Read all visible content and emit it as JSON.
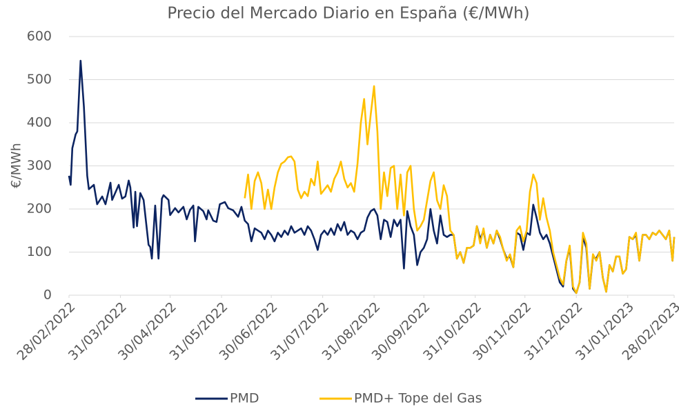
{
  "chart_data": {
    "type": "line",
    "title": "Precio del Mercado Diario en España (€/MWh)",
    "ylabel": "€/MWh",
    "legend": "bottom",
    "grid": true,
    "ylim": [
      0,
      600
    ],
    "yticks": [
      0,
      100,
      200,
      300,
      400,
      500,
      600
    ],
    "xlim": [
      "2022-02-28",
      "2023-02-28"
    ],
    "xticks": [
      {
        "value": "2022-02-28",
        "label": "28/02/2022"
      },
      {
        "value": "2022-03-31",
        "label": "31/03/2022"
      },
      {
        "value": "2022-04-30",
        "label": "30/04/2022"
      },
      {
        "value": "2022-05-31",
        "label": "31/05/2022"
      },
      {
        "value": "2022-06-30",
        "label": "30/06/2022"
      },
      {
        "value": "2022-07-31",
        "label": "31/07/2022"
      },
      {
        "value": "2022-08-31",
        "label": "31/08/2022"
      },
      {
        "value": "2022-09-30",
        "label": "30/09/2022"
      },
      {
        "value": "2022-10-31",
        "label": "31/10/2022"
      },
      {
        "value": "2022-11-30",
        "label": "30/11/2022"
      },
      {
        "value": "2022-12-31",
        "label": "31/12/2022"
      },
      {
        "value": "2023-01-31",
        "label": "31/01/2023"
      },
      {
        "value": "2023-02-28",
        "label": "28/02/2023"
      }
    ],
    "x": [
      "2022-02-28",
      "2022-03-01",
      "2022-03-02",
      "2022-03-04",
      "2022-03-05",
      "2022-03-07",
      "2022-03-09",
      "2022-03-11",
      "2022-03-12",
      "2022-03-15",
      "2022-03-17",
      "2022-03-20",
      "2022-03-22",
      "2022-03-25",
      "2022-03-26",
      "2022-03-30",
      "2022-04-01",
      "2022-04-03",
      "2022-04-05",
      "2022-04-06",
      "2022-04-08",
      "2022-04-09",
      "2022-04-10",
      "2022-04-12",
      "2022-04-14",
      "2022-04-17",
      "2022-04-18",
      "2022-04-19",
      "2022-04-21",
      "2022-04-23",
      "2022-04-25",
      "2022-04-26",
      "2022-04-29",
      "2022-04-30",
      "2022-05-03",
      "2022-05-05",
      "2022-05-08",
      "2022-05-10",
      "2022-05-12",
      "2022-05-14",
      "2022-05-15",
      "2022-05-17",
      "2022-05-20",
      "2022-05-22",
      "2022-05-23",
      "2022-05-26",
      "2022-05-28",
      "2022-05-30",
      "2022-06-02",
      "2022-06-04",
      "2022-06-07",
      "2022-06-10",
      "2022-06-12",
      "2022-06-14",
      "2022-06-16",
      "2022-06-18",
      "2022-06-20",
      "2022-06-22",
      "2022-06-24",
      "2022-06-26",
      "2022-06-28",
      "2022-06-30",
      "2022-07-02",
      "2022-07-04",
      "2022-07-06",
      "2022-07-08",
      "2022-07-10",
      "2022-07-12",
      "2022-07-14",
      "2022-07-16",
      "2022-07-18",
      "2022-07-20",
      "2022-07-22",
      "2022-07-24",
      "2022-07-26",
      "2022-07-28",
      "2022-07-30",
      "2022-08-01",
      "2022-08-03",
      "2022-08-05",
      "2022-08-07",
      "2022-08-09",
      "2022-08-11",
      "2022-08-13",
      "2022-08-15",
      "2022-08-17",
      "2022-08-19",
      "2022-08-21",
      "2022-08-23",
      "2022-08-25",
      "2022-08-27",
      "2022-08-29",
      "2022-08-31",
      "2022-09-02",
      "2022-09-04",
      "2022-09-06",
      "2022-09-08",
      "2022-09-10",
      "2022-09-12",
      "2022-09-14",
      "2022-09-16",
      "2022-09-18",
      "2022-09-20",
      "2022-09-22",
      "2022-09-24",
      "2022-09-26",
      "2022-09-28",
      "2022-09-30",
      "2022-10-02",
      "2022-10-04",
      "2022-10-06",
      "2022-10-08",
      "2022-10-10",
      "2022-10-12",
      "2022-10-14",
      "2022-10-16",
      "2022-10-18",
      "2022-10-20",
      "2022-10-22",
      "2022-10-24",
      "2022-10-26",
      "2022-10-28",
      "2022-10-30",
      "2022-11-01",
      "2022-11-03",
      "2022-11-05",
      "2022-11-07",
      "2022-11-09",
      "2022-11-11",
      "2022-11-13",
      "2022-11-15",
      "2022-11-17",
      "2022-11-19",
      "2022-11-21",
      "2022-11-23",
      "2022-11-25",
      "2022-11-27",
      "2022-11-29",
      "2022-12-01",
      "2022-12-03",
      "2022-12-05",
      "2022-12-07",
      "2022-12-09",
      "2022-12-11",
      "2022-12-13",
      "2022-12-15",
      "2022-12-17",
      "2022-12-19",
      "2022-12-21",
      "2022-12-23",
      "2022-12-25",
      "2022-12-27",
      "2022-12-29",
      "2022-12-31",
      "2023-01-02",
      "2023-01-04",
      "2023-01-06",
      "2023-01-08",
      "2023-01-10",
      "2023-01-12",
      "2023-01-14",
      "2023-01-16",
      "2023-01-18",
      "2023-01-20",
      "2023-01-22",
      "2023-01-24",
      "2023-01-26",
      "2023-01-28",
      "2023-01-30",
      "2023-02-01",
      "2023-02-03",
      "2023-02-05",
      "2023-02-07",
      "2023-02-09",
      "2023-02-11",
      "2023-02-13",
      "2023-02-15",
      "2023-02-17",
      "2023-02-19",
      "2023-02-21",
      "2023-02-23",
      "2023-02-25",
      "2023-02-27",
      "2023-02-28"
    ],
    "series": [
      {
        "name": "PMD",
        "color": "#0c2461",
        "values": [
          277,
          256,
          341,
          373,
          380,
          544,
          437,
          277,
          246,
          256,
          211,
          229,
          211,
          261,
          221,
          256,
          224,
          229,
          266,
          250,
          157,
          240,
          160,
          237,
          221,
          117,
          112,
          85,
          208,
          85,
          224,
          232,
          221,
          186,
          202,
          192,
          205,
          176,
          198,
          208,
          125,
          205,
          195,
          176,
          197,
          173,
          170,
          211,
          216,
          202,
          197,
          182,
          205,
          173,
          165,
          125,
          155,
          150,
          145,
          130,
          150,
          140,
          125,
          145,
          135,
          150,
          140,
          160,
          145,
          150,
          155,
          140,
          160,
          150,
          130,
          105,
          140,
          150,
          140,
          155,
          140,
          165,
          150,
          170,
          140,
          150,
          145,
          130,
          145,
          150,
          180,
          195,
          200,
          185,
          130,
          175,
          170,
          135,
          175,
          160,
          175,
          62,
          195,
          160,
          140,
          70,
          100,
          110,
          130,
          200,
          150,
          120,
          185,
          140,
          135,
          140,
          140,
          85,
          100,
          75,
          110,
          110,
          115,
          160,
          130,
          150,
          110,
          140,
          120,
          150,
          130,
          105,
          85,
          90,
          65,
          145,
          140,
          105,
          145,
          140,
          210,
          180,
          145,
          130,
          140,
          120,
          90,
          60,
          30,
          20,
          80,
          110,
          15,
          5,
          30,
          135,
          110,
          15,
          90,
          85,
          100,
          40,
          8,
          70,
          55,
          90,
          90,
          50,
          60,
          135,
          130,
          140,
          80,
          140,
          140,
          130,
          145,
          140,
          150,
          140,
          130,
          150,
          80,
          135
        ]
      },
      {
        "name": "PMD+ Tope del Gas",
        "color": "#ffc000",
        "values": [
          null,
          null,
          null,
          null,
          null,
          null,
          null,
          null,
          null,
          null,
          null,
          null,
          null,
          null,
          null,
          null,
          null,
          null,
          null,
          null,
          null,
          null,
          null,
          null,
          null,
          null,
          null,
          null,
          null,
          null,
          null,
          null,
          null,
          null,
          null,
          null,
          null,
          null,
          null,
          null,
          null,
          null,
          null,
          null,
          null,
          null,
          null,
          null,
          null,
          null,
          null,
          null,
          null,
          225,
          280,
          200,
          265,
          285,
          260,
          200,
          245,
          200,
          250,
          285,
          305,
          310,
          320,
          322,
          310,
          245,
          225,
          240,
          230,
          270,
          255,
          310,
          235,
          245,
          255,
          240,
          270,
          285,
          310,
          270,
          250,
          260,
          240,
          305,
          400,
          455,
          350,
          420,
          485,
          380,
          200,
          285,
          230,
          295,
          300,
          200,
          280,
          185,
          285,
          300,
          200,
          150,
          160,
          175,
          220,
          265,
          285,
          220,
          200,
          255,
          230,
          150,
          140,
          85,
          100,
          75,
          110,
          110,
          115,
          160,
          120,
          155,
          110,
          140,
          120,
          150,
          135,
          105,
          80,
          95,
          65,
          150,
          160,
          125,
          150,
          240,
          280,
          260,
          175,
          225,
          180,
          150,
          100,
          70,
          40,
          25,
          80,
          115,
          20,
          5,
          30,
          145,
          120,
          15,
          95,
          80,
          100,
          40,
          8,
          70,
          55,
          90,
          90,
          50,
          60,
          135,
          130,
          145,
          80,
          140,
          140,
          130,
          145,
          140,
          150,
          140,
          130,
          150,
          80,
          135
        ]
      }
    ]
  }
}
